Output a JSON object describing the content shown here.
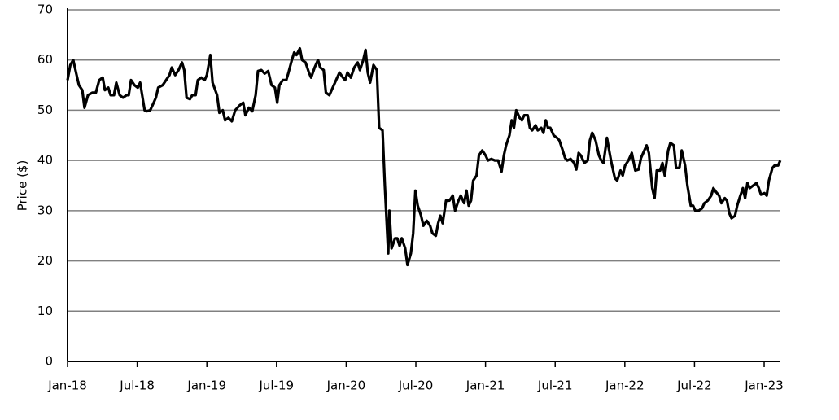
{
  "chart_data": {
    "type": "line",
    "y_label": "Price ($)",
    "color": "#000000",
    "grid": true,
    "xlim": [
      0,
      61.4
    ],
    "xticks": [
      {
        "value": 0,
        "label": "Jan-18"
      },
      {
        "value": 6,
        "label": "Jul-18"
      },
      {
        "value": 12,
        "label": "Jan-19"
      },
      {
        "value": 18,
        "label": "Jul-19"
      },
      {
        "value": 24,
        "label": "Jan-20"
      },
      {
        "value": 30,
        "label": "Jul-20"
      },
      {
        "value": 36,
        "label": "Jan-21"
      },
      {
        "value": 42,
        "label": "Jul-21"
      },
      {
        "value": 48,
        "label": "Jan-22"
      },
      {
        "value": 54,
        "label": "Jul-22"
      },
      {
        "value": 60,
        "label": "Jan-23"
      }
    ],
    "ylim": [
      0,
      70
    ],
    "yticks": [
      0,
      10,
      20,
      30,
      40,
      50,
      60,
      70
    ],
    "x": [
      0,
      0.24,
      0.49,
      0.78,
      0.98,
      1.27,
      1.46,
      1.76,
      2.15,
      2.44,
      2.73,
      3.03,
      3.22,
      3.51,
      3.71,
      4.0,
      4.2,
      4.49,
      4.78,
      5.08,
      5.27,
      5.47,
      5.76,
      6.05,
      6.25,
      6.64,
      6.83,
      7.12,
      7.42,
      7.61,
      7.81,
      8.2,
      8.49,
      8.78,
      8.98,
      9.27,
      9.56,
      9.86,
      10.05,
      10.25,
      10.54,
      10.74,
      11.03,
      11.22,
      11.52,
      11.81,
      12.0,
      12.3,
      12.49,
      12.88,
      13.08,
      13.37,
      13.57,
      13.86,
      14.15,
      14.44,
      14.84,
      15.13,
      15.32,
      15.62,
      15.91,
      16.2,
      16.4,
      16.69,
      16.98,
      17.28,
      17.57,
      17.86,
      18.06,
      18.25,
      18.54,
      18.84,
      19.03,
      19.32,
      19.52,
      19.72,
      20.01,
      20.2,
      20.5,
      20.79,
      20.98,
      21.28,
      21.57,
      21.76,
      22.06,
      22.25,
      22.55,
      22.84,
      23.13,
      23.42,
      23.72,
      23.91,
      24.11,
      24.4,
      24.69,
      24.99,
      25.18,
      25.47,
      25.67,
      25.86,
      26.06,
      26.35,
      26.64,
      26.84,
      27.13,
      27.33,
      27.62,
      27.72,
      27.91,
      28.21,
      28.4,
      28.6,
      28.79,
      29.08,
      29.28,
      29.57,
      29.77,
      29.96,
      30.16,
      30.45,
      30.65,
      30.94,
      31.23,
      31.43,
      31.72,
      31.92,
      32.11,
      32.31,
      32.6,
      32.89,
      33.18,
      33.38,
      33.67,
      33.87,
      34.16,
      34.36,
      34.55,
      34.75,
      34.94,
      35.23,
      35.43,
      35.72,
      36.01,
      36.21,
      36.5,
      36.8,
      37.09,
      37.38,
      37.58,
      37.77,
      38.06,
      38.26,
      38.45,
      38.65,
      38.94,
      39.14,
      39.33,
      39.63,
      39.82,
      40.02,
      40.31,
      40.5,
      40.8,
      40.99,
      41.19,
      41.38,
      41.58,
      41.87,
      42.16,
      42.36,
      42.65,
      42.85,
      43.04,
      43.33,
      43.63,
      43.82,
      44.02,
      44.21,
      44.51,
      44.8,
      44.99,
      45.19,
      45.48,
      45.77,
      45.97,
      46.16,
      46.46,
      46.65,
      46.85,
      47.14,
      47.34,
      47.63,
      47.82,
      48.02,
      48.31,
      48.6,
      48.9,
      49.19,
      49.39,
      49.68,
      49.87,
      50.07,
      50.36,
      50.56,
      50.75,
      51.04,
      51.24,
      51.44,
      51.73,
      51.92,
      52.22,
      52.41,
      52.7,
      52.9,
      53.19,
      53.39,
      53.68,
      53.88,
      54.07,
      54.36,
      54.66,
      54.85,
      55.14,
      55.44,
      55.63,
      55.83,
      56.12,
      56.32,
      56.61,
      56.8,
      57.0,
      57.19,
      57.49,
      57.68,
      57.88,
      58.17,
      58.36,
      58.56,
      58.76,
      59.05,
      59.34,
      59.54,
      59.73,
      60.02,
      60.22,
      60.41,
      60.71,
      60.9,
      61.2,
      61.39
    ],
    "values": [
      56,
      59,
      60,
      57,
      55,
      54,
      50.5,
      53,
      53.5,
      53.5,
      56,
      56.5,
      54,
      54.5,
      53,
      53,
      55.5,
      53,
      52.5,
      53,
      53,
      56,
      55,
      54.5,
      55.5,
      50,
      49.8,
      50,
      51.5,
      52.5,
      54.5,
      55,
      56,
      57,
      58.5,
      57,
      58,
      59.5,
      58,
      52.5,
      52.2,
      53,
      53,
      56,
      56.5,
      56,
      57,
      61,
      55.5,
      53,
      49.5,
      50,
      48,
      48.5,
      47.8,
      50,
      51,
      51.5,
      49,
      50.5,
      49.8,
      53,
      57.8,
      58,
      57.3,
      57.8,
      55,
      54.5,
      51.5,
      55,
      56,
      56,
      57.5,
      60,
      61.5,
      61,
      62.3,
      60,
      59.5,
      57.5,
      56.5,
      58.5,
      60,
      58.5,
      58,
      53.5,
      53,
      54.5,
      56,
      57.5,
      56.5,
      56,
      57.5,
      56.5,
      58.5,
      59.5,
      58,
      60,
      62,
      57.5,
      55.5,
      59,
      58,
      46.5,
      46,
      35,
      21.5,
      30,
      22.5,
      24.5,
      24.5,
      23,
      24.5,
      22.5,
      19.2,
      21.5,
      25.5,
      34,
      31,
      29,
      27,
      28,
      27,
      25.5,
      25,
      27.5,
      29,
      27.5,
      32,
      32,
      33,
      30,
      32,
      33,
      31.5,
      34,
      31,
      32,
      36,
      37,
      41,
      42,
      41,
      40,
      40.3,
      40,
      40,
      37.8,
      41,
      43,
      45,
      48,
      46.5,
      50,
      48.5,
      48,
      49,
      49,
      46.5,
      46,
      47,
      46,
      46.5,
      45.5,
      48,
      46.5,
      46.5,
      45,
      44.5,
      44,
      42,
      40.5,
      40,
      40.3,
      39.5,
      38.2,
      41.5,
      41,
      39.5,
      40,
      44,
      45.5,
      44,
      41,
      40,
      39.5,
      44.5,
      42,
      39.5,
      36.5,
      36,
      38,
      37,
      39,
      40,
      41.5,
      38,
      38.2,
      40.5,
      42,
      43,
      41.5,
      34.5,
      32.5,
      38,
      38,
      39.5,
      37,
      42,
      43.5,
      43,
      38.5,
      38.5,
      42,
      39,
      35,
      31,
      31,
      30,
      30,
      30.5,
      31.5,
      32,
      33,
      34.5,
      33.8,
      33,
      31.5,
      32.5,
      32,
      29.5,
      28.5,
      29,
      31,
      32.5,
      34.5,
      32.5,
      35.5,
      34.5,
      35,
      35.5,
      34.5,
      33.2,
      33.5,
      33,
      36,
      38.5,
      39,
      39,
      40
    ]
  }
}
